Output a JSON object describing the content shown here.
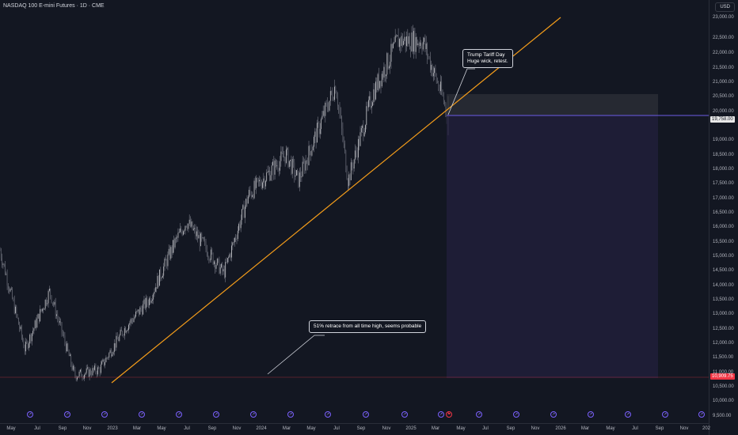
{
  "header": {
    "title": "NASDAQ 100 E-mini Futures · 1D · CME",
    "currency": "USD"
  },
  "price_axis": {
    "labels": [
      "23,000.00",
      "22,500.00",
      "22,000.00",
      "21,500.00",
      "21,000.00",
      "20,500.00",
      "20,000.00",
      "19,000.00",
      "18,500.00",
      "18,000.00",
      "17,500.00",
      "17,000.00",
      "16,500.00",
      "16,000.00",
      "15,500.00",
      "15,000.00",
      "14,500.00",
      "14,000.00",
      "13,500.00",
      "13,000.00",
      "12,500.00",
      "12,000.00",
      "11,500.00",
      "11,000.00",
      "10,500.00",
      "10,000.00",
      "9,500.00"
    ],
    "current_price": "19,758.00",
    "target_price": "10,909.75"
  },
  "time_axis": {
    "labels": [
      "May",
      "Jul",
      "Sep",
      "Nov",
      "2023",
      "Mar",
      "May",
      "Jul",
      "Sep",
      "Nov",
      "2024",
      "Mar",
      "May",
      "Jul",
      "Sep",
      "Nov",
      "2025",
      "Mar",
      "May",
      "Jul",
      "Sep",
      "Nov",
      "2026",
      "Mar",
      "May",
      "Jul",
      "Sep",
      "Nov",
      "202"
    ]
  },
  "annotations": {
    "tariff_line1": "Trump Tariff Day",
    "tariff_line2": "Huge wick, retest.",
    "retrace": "51% retrace from all time high, seems probable"
  },
  "events": {
    "count": 17,
    "icon": "dividend-event-icon",
    "alert_icon": "flag-alert-icon"
  },
  "colors": {
    "background": "#131722",
    "candles": "#787b86",
    "trendline": "#f59d1a",
    "target_zone": "#211f3a",
    "resistance_zone": "#2a2d35",
    "target_tag": "#f23645"
  },
  "chart_data": {
    "type": "candlestick",
    "symbol": "NASDAQ 100 E-mini Futures",
    "interval": "1D",
    "exchange": "CME",
    "x_range": [
      "2022-04",
      "2026-12"
    ],
    "y_range": [
      9500,
      23300
    ],
    "approx_closes": [
      {
        "date": "2022-04",
        "price": 15000
      },
      {
        "date": "2022-06",
        "price": 11600
      },
      {
        "date": "2022-08",
        "price": 13600
      },
      {
        "date": "2022-10",
        "price": 10700
      },
      {
        "date": "2022-12",
        "price": 10900
      },
      {
        "date": "2023-02",
        "price": 12300
      },
      {
        "date": "2023-04",
        "price": 13300
      },
      {
        "date": "2023-06",
        "price": 15200
      },
      {
        "date": "2023-07",
        "price": 16000
      },
      {
        "date": "2023-10",
        "price": 14200
      },
      {
        "date": "2023-12",
        "price": 16900
      },
      {
        "date": "2024-03",
        "price": 18300
      },
      {
        "date": "2024-04",
        "price": 17400
      },
      {
        "date": "2024-07",
        "price": 20700
      },
      {
        "date": "2024-08",
        "price": 17400
      },
      {
        "date": "2024-10",
        "price": 20400
      },
      {
        "date": "2024-12",
        "price": 22200
      },
      {
        "date": "2025-02",
        "price": 22200
      },
      {
        "date": "2025-04",
        "price": 19758
      }
    ],
    "trendline": {
      "from": {
        "date": "2022-12",
        "price": 10750
      },
      "to": {
        "date": "2025-10",
        "price": 23300
      }
    },
    "current_price": 19758.0,
    "target_price": 10909.75,
    "annotations": [
      "Trump Tariff Day Huge wick, retest.",
      "51% retrace from all time high, seems probable"
    ]
  }
}
